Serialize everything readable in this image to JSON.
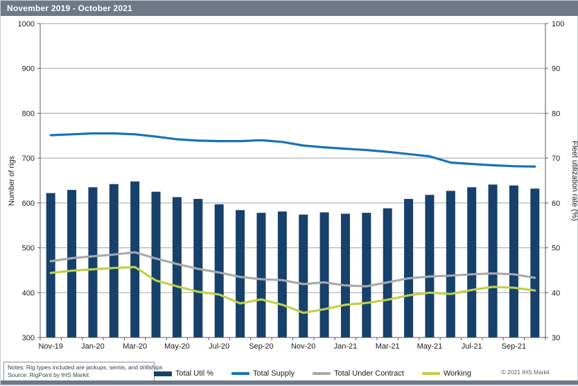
{
  "header": {
    "title": "November 2019 -  October 2021"
  },
  "chart_data": {
    "type": "combo-bar-line",
    "categories": [
      "Nov-19",
      "Dec-19",
      "Jan-20",
      "Feb-20",
      "Mar-20",
      "Apr-20",
      "May-20",
      "Jun-20",
      "Jul-20",
      "Aug-20",
      "Sep-20",
      "Oct-20",
      "Nov-20",
      "Dec-20",
      "Jan-21",
      "Feb-21",
      "Mar-21",
      "Apr-21",
      "May-21",
      "Jun-21",
      "Jul-21",
      "Aug-21",
      "Sep-21",
      "Oct-21"
    ],
    "x_tick_labels": [
      "Nov-19",
      "Jan-20",
      "Mar-20",
      "May-20",
      "Jul-20",
      "Sep-20",
      "Nov-20",
      "Jan-21",
      "Mar-21",
      "May-21",
      "Jul-21",
      "Sep-21"
    ],
    "series": [
      {
        "name": "Total Util %",
        "type": "bar",
        "axis": "right",
        "color": "#17406a",
        "values": [
          62.2,
          62.9,
          63.5,
          64.2,
          64.8,
          62.5,
          61.3,
          60.9,
          59.7,
          58.4,
          57.8,
          58.1,
          57.4,
          57.9,
          57.6,
          57.8,
          58.8,
          60.9,
          61.8,
          62.7,
          63.5,
          64.1,
          63.9,
          63.2
        ]
      },
      {
        "name": "Total Supply",
        "type": "line",
        "axis": "left",
        "color": "#1673ba",
        "values": [
          751,
          753,
          755,
          755,
          753,
          748,
          742,
          739,
          738,
          738,
          740,
          736,
          728,
          724,
          721,
          718,
          714,
          709,
          704,
          690,
          687,
          684,
          682,
          681
        ]
      },
      {
        "name": "Total Under Contract",
        "type": "line",
        "axis": "left",
        "color": "#a7a9ac",
        "values": [
          470,
          477,
          481,
          485,
          490,
          476,
          464,
          453,
          445,
          435,
          430,
          428,
          419,
          423,
          416,
          414,
          423,
          432,
          436,
          438,
          441,
          443,
          441,
          433
        ]
      },
      {
        "name": "Working",
        "type": "line",
        "axis": "left",
        "color": "#bfd04b",
        "values": [
          444,
          449,
          452,
          455,
          457,
          427,
          414,
          402,
          396,
          376,
          385,
          373,
          355,
          363,
          373,
          377,
          384,
          394,
          400,
          397,
          406,
          413,
          411,
          405
        ]
      }
    ],
    "left_axis": {
      "label": "Number of rigs",
      "min": 300,
      "max": 1000,
      "step": 100
    },
    "right_axis": {
      "label": "Fleet utilization rate (%)",
      "min": 30,
      "max": 100,
      "step": 10
    },
    "grid": true,
    "legend_position": "bottom"
  },
  "footer": {
    "notes": "Notes: Rig types included are jackups, semis, and drillships",
    "source": "Source: RigPoint by IHS Markit",
    "copyright": "© 2021  IHS Markit"
  },
  "colors": {
    "title_bar": "#6e7987",
    "gridline": "#9aa0a6",
    "axis_line": "#55585c",
    "tick_text": "#1a1a1a"
  }
}
